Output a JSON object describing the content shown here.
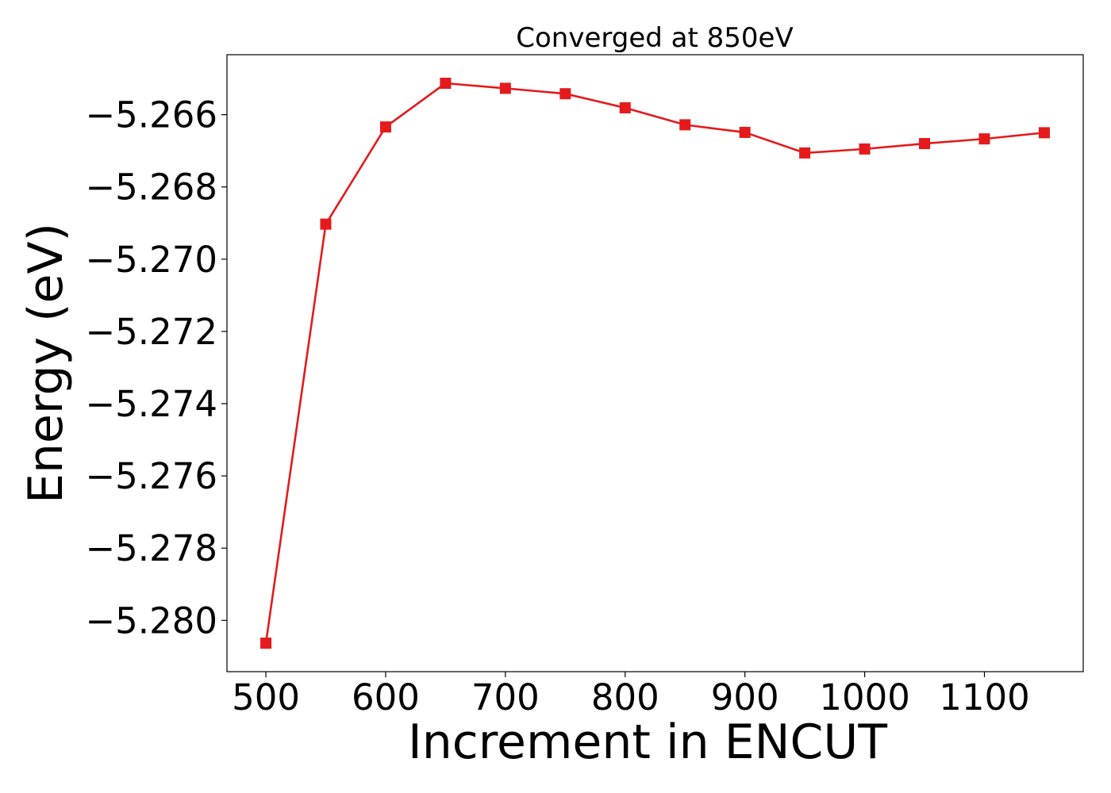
{
  "chart_data": {
    "type": "line",
    "title": "Converged at 850eV",
    "xlabel": "Increment in ENCUT",
    "ylabel": "Energy (eV)",
    "xlim": [
      467.5,
      1182.5
    ],
    "ylim": [
      -5.28142,
      -5.26434
    ],
    "xticks": [
      500,
      600,
      700,
      800,
      900,
      1000,
      1100
    ],
    "yticks": [
      -5.28,
      -5.278,
      -5.276,
      -5.274,
      -5.272,
      -5.27,
      -5.268,
      -5.266
    ],
    "ytick_labels": [
      "−5.280",
      "−5.278",
      "−5.276",
      "−5.274",
      "−5.272",
      "−5.270",
      "−5.268",
      "−5.266"
    ],
    "grid": false,
    "series": [
      {
        "color": "#e41a1c",
        "marker": "square",
        "x": [
          500,
          550,
          600,
          650,
          700,
          750,
          800,
          850,
          900,
          950,
          1000,
          1050,
          1100,
          1150
        ],
        "y": [
          -5.28063,
          -5.26903,
          -5.26634,
          -5.26513,
          -5.26527,
          -5.26542,
          -5.26581,
          -5.26628,
          -5.26649,
          -5.26706,
          -5.26695,
          -5.2668,
          -5.26667,
          -5.2665
        ]
      }
    ]
  }
}
